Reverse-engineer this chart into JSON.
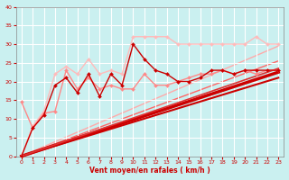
{
  "xlabel": "Vent moyen/en rafales ( km/h )",
  "ylabel": "",
  "bg_color": "#caf0f0",
  "grid_color": "#ffffff",
  "xlim": [
    -0.5,
    23.5
  ],
  "ylim": [
    0,
    40
  ],
  "yticks": [
    0,
    5,
    10,
    15,
    20,
    25,
    30,
    35,
    40
  ],
  "xticks": [
    0,
    1,
    2,
    3,
    4,
    5,
    6,
    7,
    8,
    9,
    10,
    11,
    12,
    13,
    14,
    15,
    16,
    17,
    18,
    19,
    20,
    21,
    22,
    23
  ],
  "series": [
    {
      "x": [
        0,
        1,
        2,
        3,
        4,
        5,
        6,
        7,
        8,
        9,
        10,
        11,
        12,
        13,
        14,
        15,
        16,
        17,
        18,
        19,
        20,
        21,
        22,
        23
      ],
      "y": [
        0,
        7.5,
        11,
        19,
        21,
        17,
        22,
        16,
        22,
        19,
        30,
        26,
        23,
        22,
        20,
        20,
        21,
        23,
        23,
        22,
        23,
        23,
        23,
        23
      ],
      "color": "#cc0000",
      "lw": 1.0,
      "marker": "D",
      "ms": 2.0,
      "zorder": 5
    },
    {
      "x": [
        0,
        1,
        2,
        3,
        4,
        5,
        6,
        7,
        8,
        9,
        10,
        11,
        12,
        13,
        14,
        15,
        16,
        17,
        18,
        19,
        20,
        21,
        22,
        23
      ],
      "y": [
        14.5,
        7.5,
        11.5,
        12,
        23,
        18,
        21,
        18,
        19,
        18,
        18,
        22,
        19,
        19,
        20,
        21,
        22,
        22,
        23,
        22,
        23,
        22,
        23,
        23
      ],
      "color": "#ff8888",
      "lw": 1.0,
      "marker": "D",
      "ms": 2.0,
      "zorder": 4
    },
    {
      "x": [
        0,
        1,
        2,
        3,
        4,
        5,
        6,
        7,
        8,
        9,
        10,
        11,
        12,
        13,
        14,
        15,
        16,
        17,
        18,
        19,
        20,
        21,
        22,
        23
      ],
      "y": [
        0,
        8,
        12,
        22,
        24,
        22,
        26,
        22,
        23,
        22,
        32,
        32,
        32,
        32,
        30,
        30,
        30,
        30,
        30,
        30,
        30,
        32,
        30,
        30
      ],
      "color": "#ffbbbb",
      "lw": 1.0,
      "marker": "D",
      "ms": 2.0,
      "zorder": 3
    },
    {
      "x": [
        0,
        23
      ],
      "y": [
        0,
        22.5
      ],
      "color": "#cc0000",
      "lw": 2.5,
      "marker": null,
      "ms": 0,
      "zorder": 2
    },
    {
      "x": [
        0,
        23
      ],
      "y": [
        0,
        21.0
      ],
      "color": "#cc0000",
      "lw": 1.5,
      "marker": null,
      "ms": 0,
      "zorder": 2
    },
    {
      "x": [
        0,
        23
      ],
      "y": [
        0,
        23.5
      ],
      "color": "#dd3333",
      "lw": 1.2,
      "marker": null,
      "ms": 0,
      "zorder": 2
    },
    {
      "x": [
        0,
        23
      ],
      "y": [
        0,
        25.5
      ],
      "color": "#ff6666",
      "lw": 1.0,
      "marker": null,
      "ms": 0,
      "zorder": 1
    },
    {
      "x": [
        0,
        23
      ],
      "y": [
        0,
        29.5
      ],
      "color": "#ffaaaa",
      "lw": 1.0,
      "marker": null,
      "ms": 0,
      "zorder": 1
    }
  ]
}
